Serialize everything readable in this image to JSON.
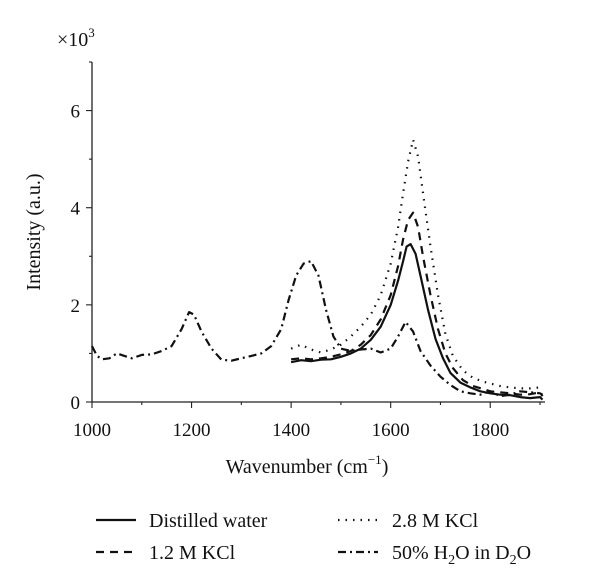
{
  "chart_data": {
    "type": "line",
    "multiplier_label": "×10",
    "multiplier_exponent": "3",
    "xlabel": "Wavenumber (cm",
    "xlabel_exponent": "−1",
    "xlabel_suffix": ")",
    "ylabel": "Intensity (a.u.)",
    "xlim": [
      1000,
      1910
    ],
    "ylim": [
      0,
      7
    ],
    "x_ticks": [
      1000,
      1200,
      1400,
      1600,
      1800
    ],
    "y_ticks": [
      0,
      2,
      4,
      6
    ],
    "grid": false,
    "legend_position": "bottom",
    "series": [
      {
        "name": "Distilled water",
        "style": "solid",
        "points": [
          [
            1400,
            0.82
          ],
          [
            1420,
            0.86
          ],
          [
            1440,
            0.84
          ],
          [
            1460,
            0.87
          ],
          [
            1480,
            0.88
          ],
          [
            1500,
            0.93
          ],
          [
            1520,
            1.0
          ],
          [
            1540,
            1.1
          ],
          [
            1560,
            1.28
          ],
          [
            1580,
            1.55
          ],
          [
            1600,
            2.0
          ],
          [
            1615,
            2.5
          ],
          [
            1625,
            2.9
          ],
          [
            1632,
            3.2
          ],
          [
            1640,
            3.25
          ],
          [
            1650,
            3.05
          ],
          [
            1660,
            2.6
          ],
          [
            1675,
            1.9
          ],
          [
            1690,
            1.3
          ],
          [
            1705,
            0.9
          ],
          [
            1720,
            0.6
          ],
          [
            1740,
            0.4
          ],
          [
            1760,
            0.3
          ],
          [
            1780,
            0.22
          ],
          [
            1800,
            0.18
          ],
          [
            1820,
            0.15
          ],
          [
            1840,
            0.14
          ],
          [
            1860,
            0.1
          ],
          [
            1880,
            0.08
          ],
          [
            1900,
            0.1
          ],
          [
            1905,
            0.05
          ]
        ]
      },
      {
        "name": "1.2 M KCl",
        "style": "dashed",
        "points": [
          [
            1400,
            0.88
          ],
          [
            1420,
            0.9
          ],
          [
            1440,
            0.88
          ],
          [
            1460,
            0.9
          ],
          [
            1480,
            0.93
          ],
          [
            1500,
            0.98
          ],
          [
            1520,
            1.05
          ],
          [
            1540,
            1.18
          ],
          [
            1560,
            1.38
          ],
          [
            1580,
            1.7
          ],
          [
            1600,
            2.2
          ],
          [
            1615,
            2.8
          ],
          [
            1625,
            3.35
          ],
          [
            1635,
            3.75
          ],
          [
            1645,
            3.9
          ],
          [
            1655,
            3.6
          ],
          [
            1665,
            3.0
          ],
          [
            1680,
            2.2
          ],
          [
            1695,
            1.5
          ],
          [
            1710,
            1.0
          ],
          [
            1725,
            0.7
          ],
          [
            1745,
            0.45
          ],
          [
            1765,
            0.33
          ],
          [
            1785,
            0.27
          ],
          [
            1800,
            0.22
          ],
          [
            1820,
            0.2
          ],
          [
            1840,
            0.18
          ],
          [
            1860,
            0.15
          ],
          [
            1880,
            0.16
          ],
          [
            1900,
            0.2
          ],
          [
            1905,
            0.12
          ]
        ]
      },
      {
        "name": "2.8 M KCl",
        "style": "dotted",
        "points": [
          [
            1400,
            1.1
          ],
          [
            1420,
            1.18
          ],
          [
            1440,
            1.08
          ],
          [
            1460,
            1.02
          ],
          [
            1480,
            1.08
          ],
          [
            1500,
            1.18
          ],
          [
            1520,
            1.35
          ],
          [
            1540,
            1.55
          ],
          [
            1560,
            1.8
          ],
          [
            1580,
            2.2
          ],
          [
            1600,
            2.85
          ],
          [
            1615,
            3.6
          ],
          [
            1625,
            4.3
          ],
          [
            1635,
            4.95
          ],
          [
            1645,
            5.4
          ],
          [
            1655,
            5.05
          ],
          [
            1665,
            4.3
          ],
          [
            1680,
            3.2
          ],
          [
            1695,
            2.2
          ],
          [
            1710,
            1.4
          ],
          [
            1725,
            0.95
          ],
          [
            1745,
            0.65
          ],
          [
            1765,
            0.5
          ],
          [
            1785,
            0.42
          ],
          [
            1800,
            0.38
          ],
          [
            1820,
            0.33
          ],
          [
            1840,
            0.3
          ],
          [
            1860,
            0.28
          ],
          [
            1880,
            0.28
          ],
          [
            1900,
            0.3
          ],
          [
            1905,
            0.25
          ]
        ]
      },
      {
        "name": "50% H₂O in D₂O",
        "style": "dashdot",
        "points": [
          [
            1000,
            1.15
          ],
          [
            1010,
            0.95
          ],
          [
            1020,
            0.88
          ],
          [
            1035,
            0.9
          ],
          [
            1050,
            1.0
          ],
          [
            1065,
            0.95
          ],
          [
            1080,
            0.9
          ],
          [
            1100,
            0.97
          ],
          [
            1120,
            0.98
          ],
          [
            1140,
            1.05
          ],
          [
            1160,
            1.15
          ],
          [
            1180,
            1.5
          ],
          [
            1195,
            1.85
          ],
          [
            1205,
            1.8
          ],
          [
            1220,
            1.45
          ],
          [
            1240,
            1.1
          ],
          [
            1260,
            0.87
          ],
          [
            1280,
            0.85
          ],
          [
            1300,
            0.9
          ],
          [
            1320,
            0.95
          ],
          [
            1340,
            1.0
          ],
          [
            1360,
            1.15
          ],
          [
            1380,
            1.5
          ],
          [
            1395,
            2.1
          ],
          [
            1410,
            2.6
          ],
          [
            1425,
            2.85
          ],
          [
            1440,
            2.9
          ],
          [
            1455,
            2.6
          ],
          [
            1470,
            1.9
          ],
          [
            1485,
            1.35
          ],
          [
            1500,
            1.1
          ],
          [
            1520,
            1.05
          ],
          [
            1540,
            1.08
          ],
          [
            1560,
            1.1
          ],
          [
            1580,
            1.02
          ],
          [
            1600,
            1.1
          ],
          [
            1615,
            1.35
          ],
          [
            1630,
            1.65
          ],
          [
            1645,
            1.45
          ],
          [
            1660,
            1.05
          ],
          [
            1680,
            0.75
          ],
          [
            1700,
            0.52
          ],
          [
            1720,
            0.35
          ],
          [
            1740,
            0.22
          ],
          [
            1760,
            0.18
          ],
          [
            1780,
            0.15
          ],
          [
            1800,
            0.22
          ],
          [
            1820,
            0.12
          ],
          [
            1840,
            0.15
          ],
          [
            1860,
            0.22
          ],
          [
            1880,
            0.2
          ],
          [
            1900,
            0.18
          ],
          [
            1905,
            0.15
          ]
        ]
      }
    ]
  },
  "legend": {
    "items": [
      {
        "label": "Distilled water"
      },
      {
        "label": "2.8 M KCl"
      },
      {
        "label": "1.2 M KCl"
      },
      {
        "label": "50% H",
        "sub1": "2",
        "mid": "O in D",
        "sub2": "2",
        "end": "O"
      }
    ]
  }
}
